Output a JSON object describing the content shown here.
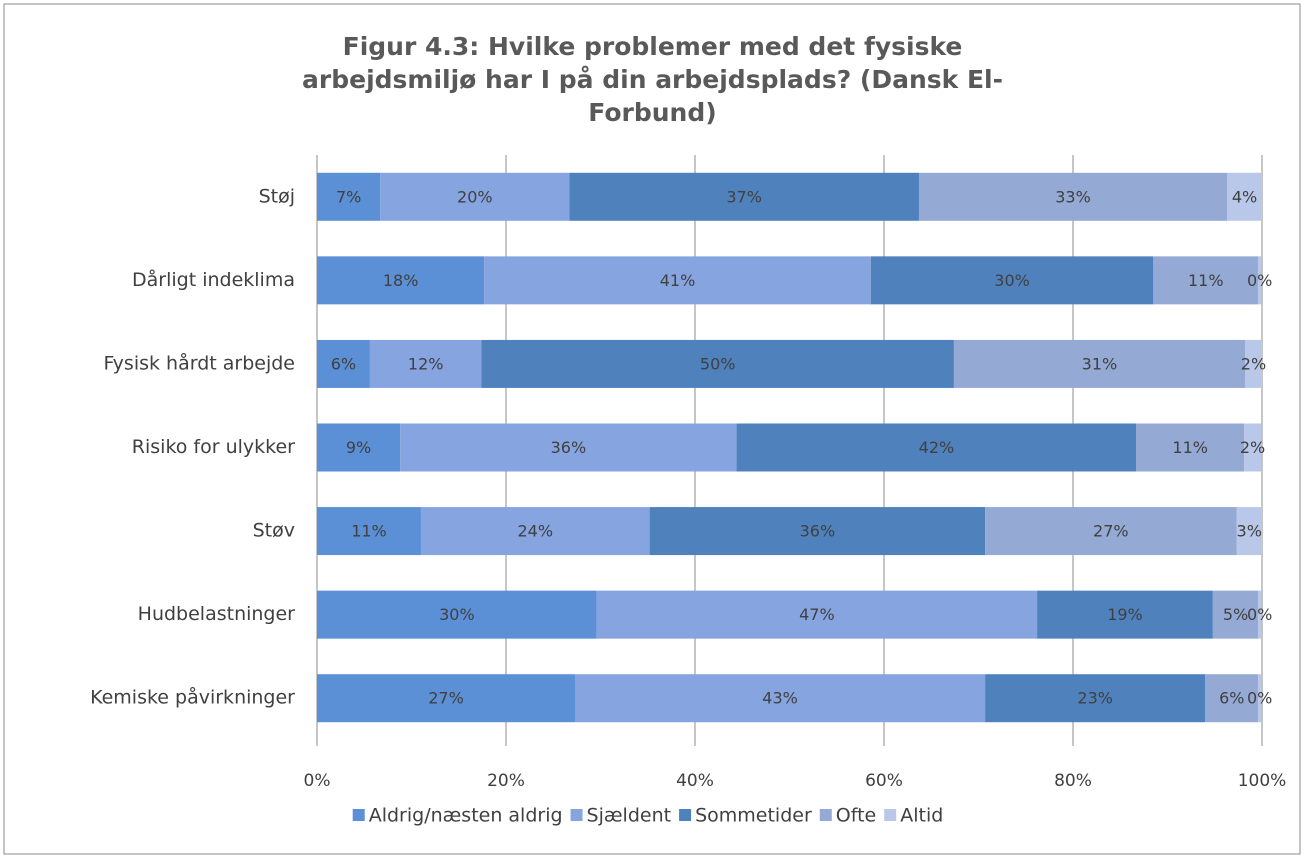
{
  "chart_data": {
    "type": "stacked_bar_horizontal",
    "title": "Figur 4.3: Hvilke problemer med det fysiske arbejdsmiljø har I på din arbejdsplads? (Dansk El-Forbund)",
    "categories": [
      "Støj",
      "Dårligt indeklima",
      "Fysisk hårdt arbejde",
      "Risiko for ulykker",
      "Støv",
      "Hudbelastninger",
      "Kemiske påvirkninger"
    ],
    "series": [
      {
        "name": "Aldrig/næsten aldrig",
        "color": "#5b8fd6",
        "values": [
          6.7,
          17.7,
          5.6,
          8.8,
          11.0,
          29.6,
          27.3
        ],
        "value_labels": [
          "7%",
          "18%",
          "6%",
          "9%",
          "11%",
          "30%",
          "27%"
        ]
      },
      {
        "name": "Sjældent",
        "color": "#86a4df",
        "values": [
          20.0,
          40.9,
          11.8,
          35.6,
          24.2,
          46.6,
          43.4
        ],
        "value_labels": [
          "20%",
          "41%",
          "12%",
          "36%",
          "24%",
          "47%",
          "43%"
        ]
      },
      {
        "name": "Sommetider",
        "color": "#4f81bd",
        "values": [
          37.0,
          29.9,
          50.0,
          42.3,
          35.5,
          18.6,
          23.3
        ],
        "value_labels": [
          "37%",
          "30%",
          "50%",
          "42%",
          "36%",
          "19%",
          "23%"
        ]
      },
      {
        "name": "Ofte",
        "color": "#94a9d3",
        "values": [
          32.6,
          11.1,
          30.8,
          11.4,
          26.6,
          4.8,
          5.6
        ],
        "value_labels": [
          "33%",
          "11%",
          "31%",
          "11%",
          "27%",
          "5%",
          "6%"
        ]
      },
      {
        "name": "Altid",
        "color": "#b9c7e8",
        "values": [
          3.7,
          0.3,
          1.8,
          1.8,
          2.7,
          0.3,
          0.3
        ],
        "value_labels": [
          "4%",
          "0%",
          "2%",
          "2%",
          "3%",
          "0%",
          "0%"
        ]
      }
    ],
    "xlim": [
      0,
      100
    ],
    "xticks": [
      {
        "value": 0,
        "label": "0%"
      },
      {
        "value": 20,
        "label": "20%"
      },
      {
        "value": 40,
        "label": "40%"
      },
      {
        "value": 60,
        "label": "60%"
      },
      {
        "value": 80,
        "label": "80%"
      },
      {
        "value": 100,
        "label": "100%"
      }
    ],
    "grid": true,
    "legend": "bottom"
  }
}
